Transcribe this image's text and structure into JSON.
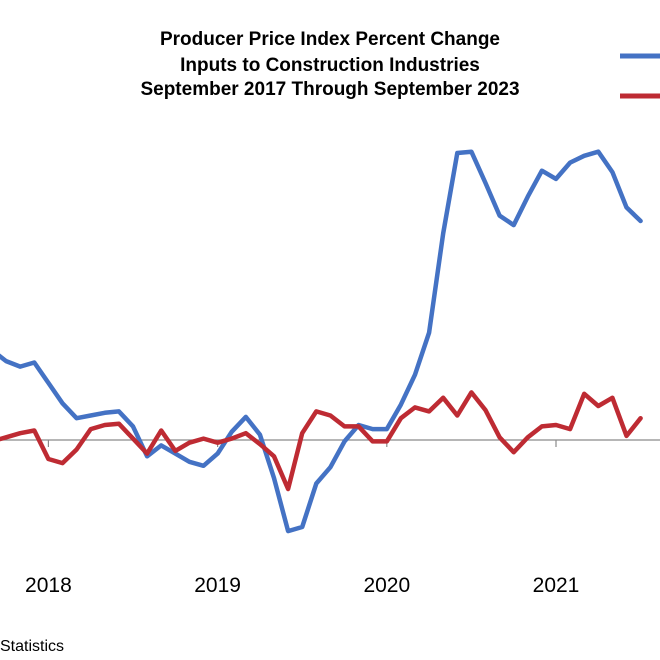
{
  "chart_data": {
    "type": "line",
    "title": [
      "Producer Price Index Percent Change",
      "Inputs to Construction Industries",
      "September 2017 Through September 2023"
    ],
    "xlabel": "",
    "ylabel": "",
    "x_ticks": [
      {
        "label": "2018",
        "month_index": 4
      },
      {
        "label": "2019",
        "month_index": 16
      },
      {
        "label": "2020",
        "month_index": 28
      },
      {
        "label": "2021",
        "month_index": 40
      }
    ],
    "x_range": [
      0,
      47.5
    ],
    "ylim": [
      -8,
      25
    ],
    "zero_line": true,
    "series": [
      {
        "name": "",
        "color": "#4472C4",
        "values": [
          6.6,
          5.8,
          5.4,
          5.7,
          4.2,
          2.7,
          1.6,
          1.8,
          2.0,
          2.1,
          1.0,
          -1.2,
          -0.4,
          -1.0,
          -1.6,
          -1.9,
          -1.0,
          0.6,
          1.7,
          0.4,
          -2.8,
          -6.7,
          -6.4,
          -3.2,
          -2.0,
          -0.1,
          1.1,
          0.8,
          0.8,
          2.6,
          4.8,
          7.9,
          15.2,
          21.1,
          21.2,
          18.9,
          16.5,
          15.8,
          17.9,
          19.8,
          19.2,
          20.4,
          20.9,
          21.2,
          19.7,
          17.1,
          16.1
        ]
      },
      {
        "name": "",
        "color": "#BE2B33",
        "values": [
          -0.1,
          0.2,
          0.5,
          0.7,
          -1.4,
          -1.7,
          -0.7,
          0.8,
          1.1,
          1.2,
          0.1,
          -1.0,
          0.7,
          -0.8,
          -0.2,
          0.1,
          -0.2,
          0.1,
          0.5,
          -0.3,
          -1.2,
          -3.6,
          0.5,
          2.1,
          1.8,
          1.0,
          1.0,
          -0.1,
          -0.1,
          1.6,
          2.4,
          2.1,
          3.1,
          1.8,
          3.5,
          2.2,
          0.2,
          -0.9,
          0.2,
          1.0,
          1.1,
          0.8,
          3.4,
          2.5,
          3.1,
          0.3,
          1.6
        ]
      }
    ]
  },
  "source_text": "Statistics"
}
